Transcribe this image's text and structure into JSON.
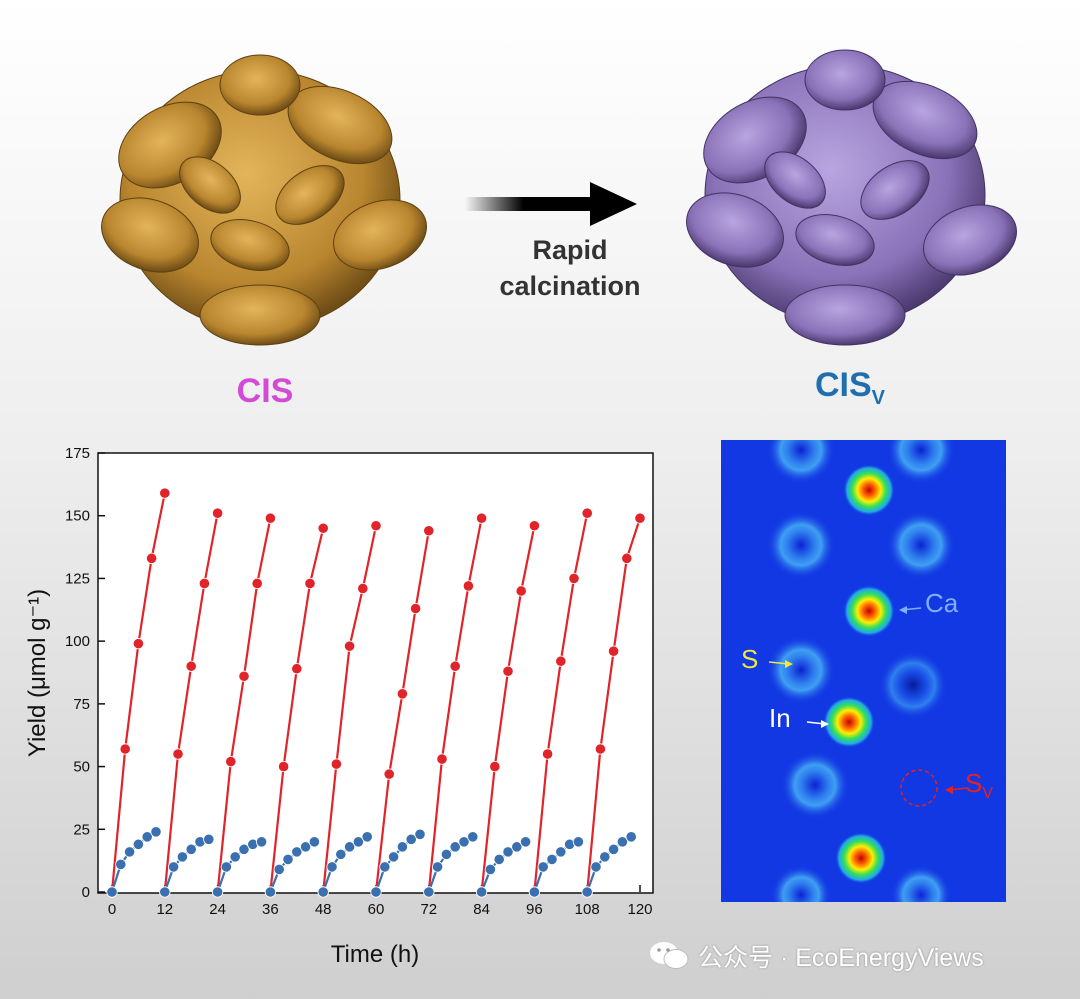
{
  "top": {
    "left_label": "CIS",
    "right_label_main": "CIS",
    "right_label_sub": "V",
    "process_line1": "Rapid",
    "process_line2": "calcination"
  },
  "colors": {
    "cis_flower": "#c8963c",
    "cisv_flower": "#9b84c4",
    "cis_label": "#d24ad6",
    "cisv_label": "#1f6fb0",
    "series_red": "#e0242a",
    "series_blue": "#3a6fb0"
  },
  "chart_data": {
    "type": "line",
    "xlabel": "Time (h)",
    "ylabel": "Yield (μmol g⁻¹)",
    "xlim": [
      0,
      120
    ],
    "ylim": [
      0,
      175
    ],
    "xticks": [
      0,
      12,
      24,
      36,
      48,
      60,
      72,
      84,
      96,
      108,
      120
    ],
    "yticks": [
      0,
      25,
      50,
      75,
      100,
      125,
      150,
      175
    ],
    "cycles_start": [
      0,
      12,
      24,
      36,
      48,
      60,
      72,
      84,
      96,
      108
    ],
    "series": [
      {
        "color": "#e0242a",
        "cycle_x": [
          0,
          3,
          6,
          9,
          12
        ],
        "cycle_values": [
          [
            0,
            57,
            99,
            133,
            159
          ],
          [
            0,
            55,
            90,
            123,
            151
          ],
          [
            0,
            52,
            86,
            123,
            149
          ],
          [
            0,
            50,
            89,
            123,
            145
          ],
          [
            0,
            51,
            98,
            121,
            146
          ],
          [
            0,
            47,
            79,
            113,
            144
          ],
          [
            0,
            53,
            90,
            122,
            149
          ],
          [
            0,
            50,
            88,
            120,
            146
          ],
          [
            0,
            55,
            92,
            125,
            151
          ],
          [
            0,
            57,
            96,
            133,
            149
          ]
        ]
      },
      {
        "color": "#3a6fb0",
        "cycle_x": [
          0,
          2,
          4,
          6,
          8,
          10
        ],
        "cycle_values": [
          [
            0,
            11,
            16,
            19,
            22,
            24
          ],
          [
            0,
            10,
            14,
            17,
            20,
            21
          ],
          [
            0,
            10,
            14,
            17,
            19,
            20
          ],
          [
            0,
            9,
            13,
            16,
            18,
            20
          ],
          [
            0,
            10,
            15,
            18,
            20,
            22
          ],
          [
            0,
            10,
            14,
            18,
            21,
            23
          ],
          [
            0,
            10,
            15,
            18,
            20,
            22
          ],
          [
            0,
            9,
            13,
            16,
            18,
            20
          ],
          [
            0,
            10,
            13,
            16,
            19,
            20
          ],
          [
            0,
            10,
            14,
            17,
            20,
            22
          ]
        ]
      }
    ]
  },
  "map": {
    "labels": {
      "ca": "Ca",
      "s": "S",
      "in": "In",
      "sv_main": "S",
      "sv_sub": "V"
    }
  },
  "watermark": {
    "text": "公众号 · EcoEnergyViews",
    "icon": "wechat-icon"
  }
}
